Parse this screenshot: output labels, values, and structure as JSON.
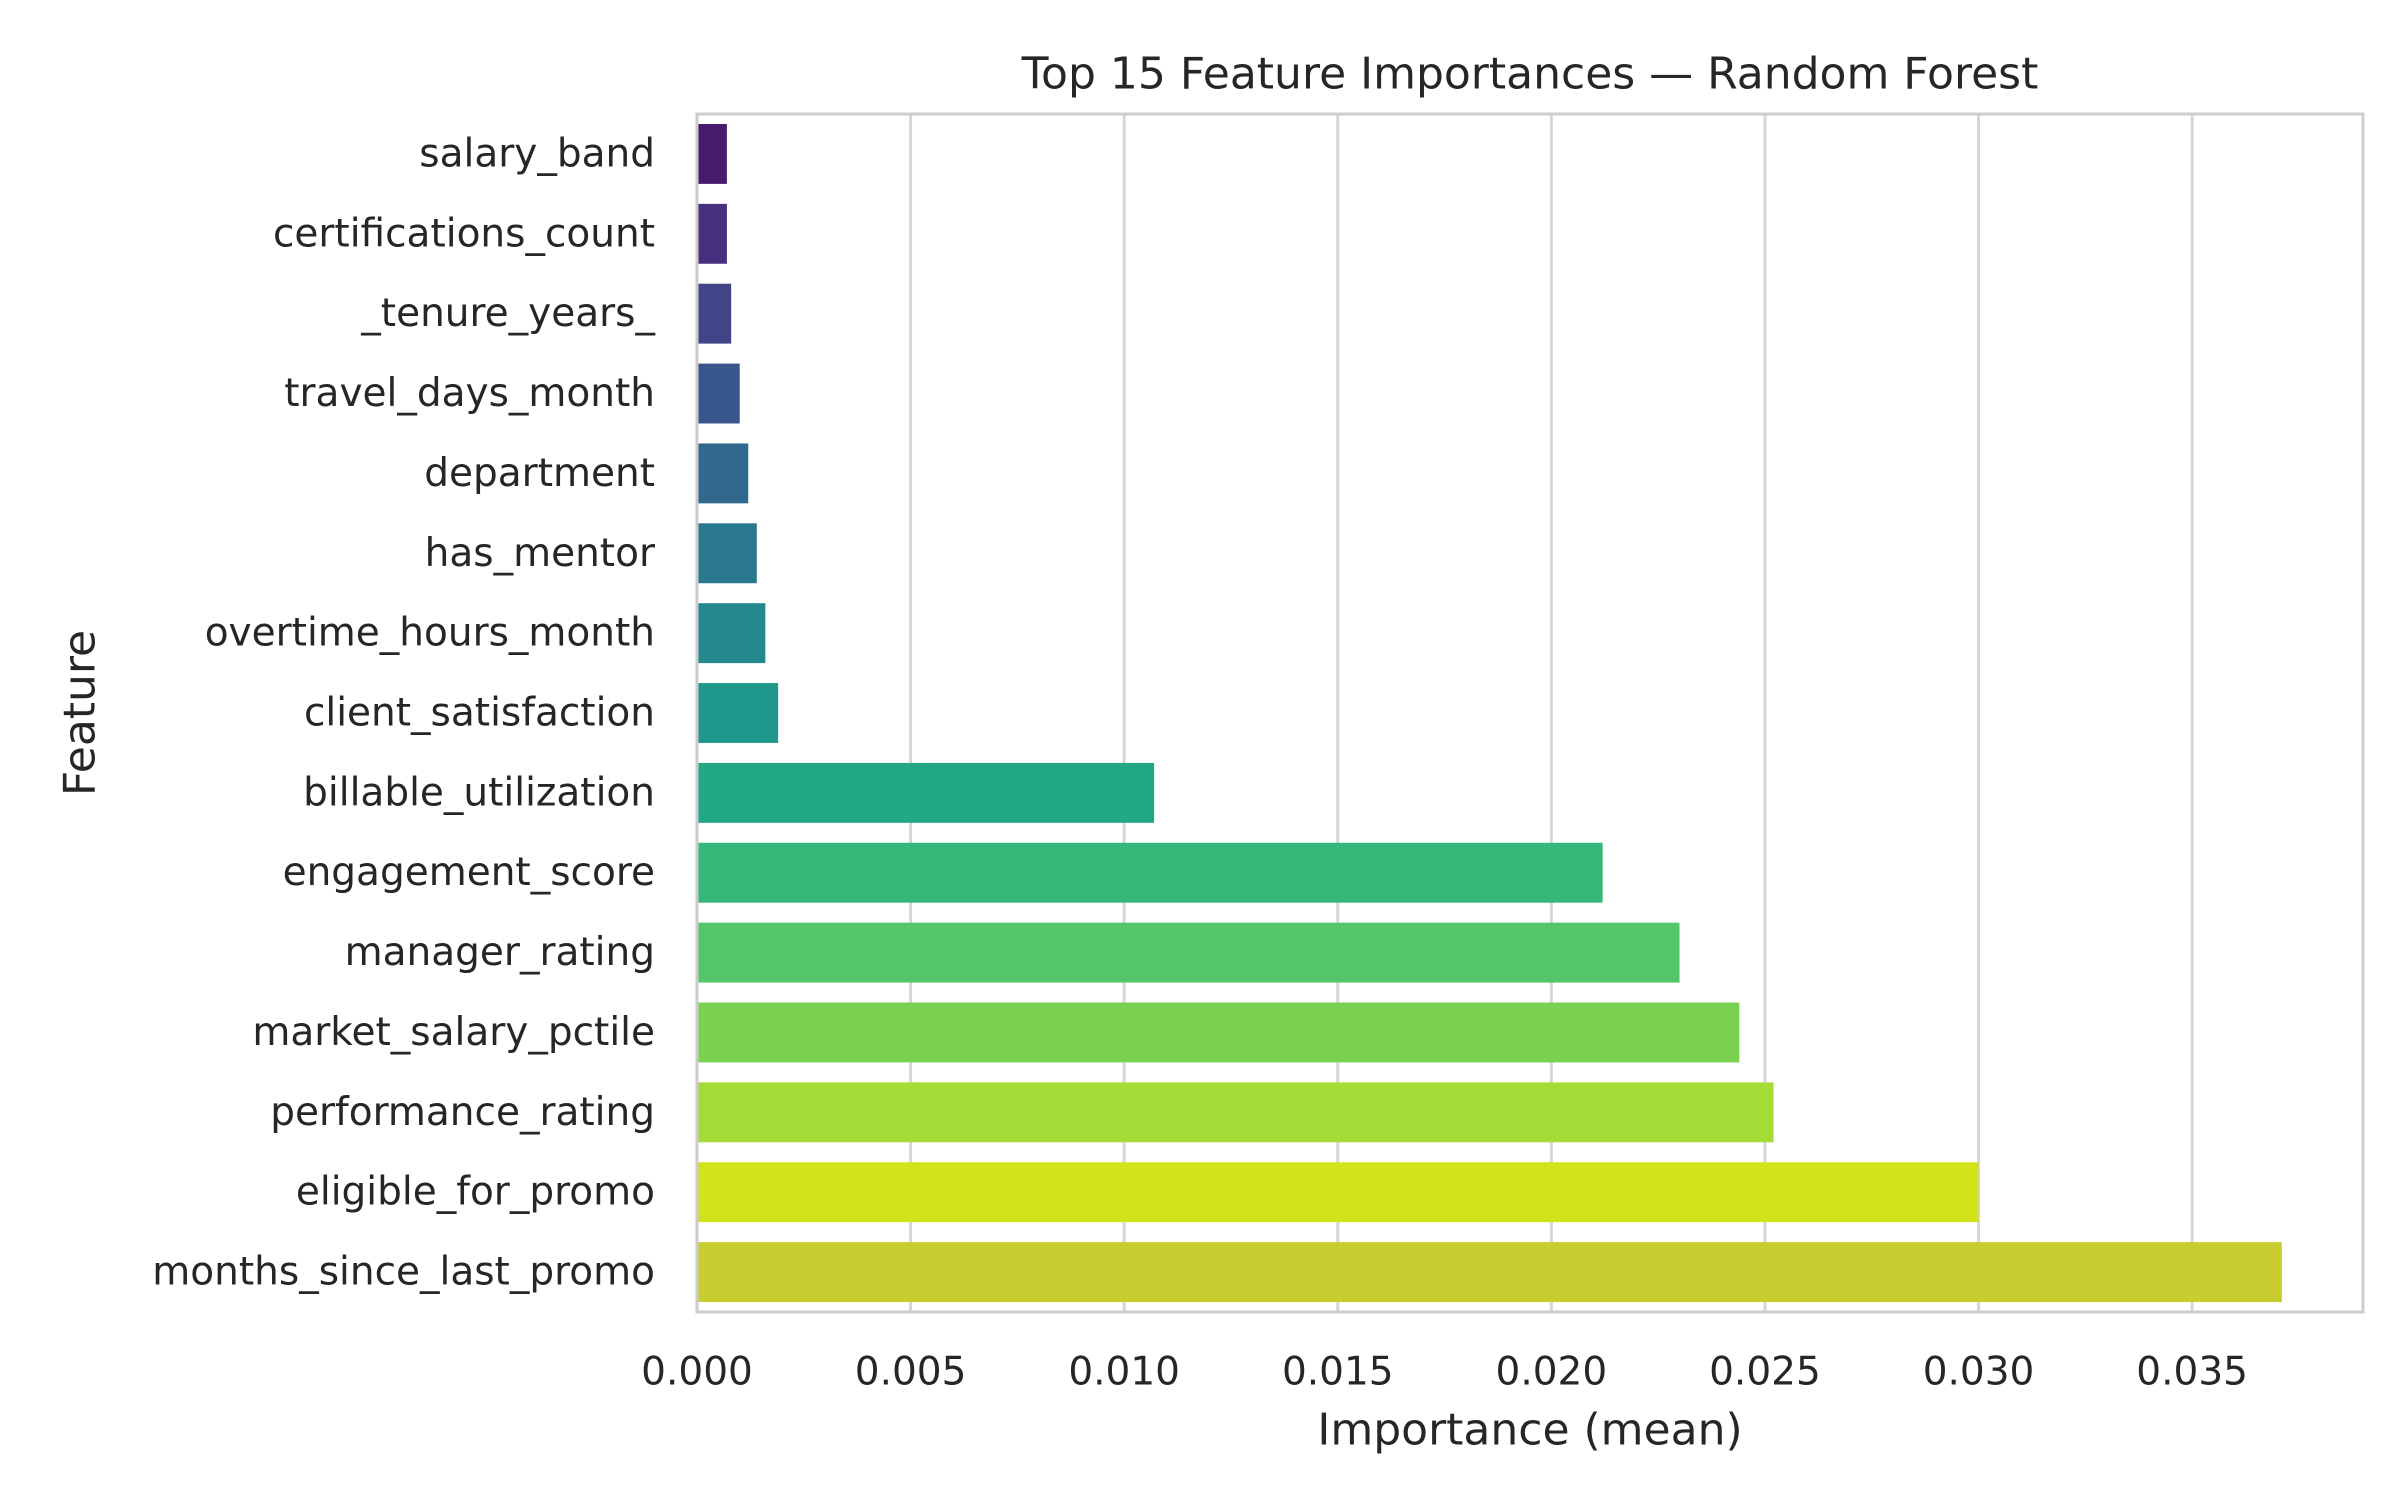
{
  "chart_data": {
    "type": "bar",
    "orientation": "horizontal",
    "title": "Top 15 Feature Importances — Random Forest",
    "xlabel": "Importance (mean)",
    "ylabel": "Feature",
    "xlim": [
      0,
      0.039
    ],
    "xticks": [
      0.0,
      0.005,
      0.01,
      0.015,
      0.02,
      0.025,
      0.03,
      0.035
    ],
    "xtick_labels": [
      "0.000",
      "0.005",
      "0.010",
      "0.015",
      "0.020",
      "0.025",
      "0.030",
      "0.035"
    ],
    "grid": true,
    "grid_axis": "x",
    "legend": false,
    "palette": "viridis",
    "categories": [
      "salary_band",
      "certifications_count",
      "_tenure_years_",
      "travel_days_month",
      "department",
      "has_mentor",
      "overtime_hours_month",
      "client_satisfaction",
      "billable_utilization",
      "engagement_score",
      "manager_rating",
      "market_salary_pctile",
      "performance_rating",
      "eligible_for_promo",
      "months_since_last_promo"
    ],
    "values": [
      0.0007,
      0.0007,
      0.0008,
      0.001,
      0.0012,
      0.0014,
      0.0016,
      0.0019,
      0.0107,
      0.0212,
      0.023,
      0.0244,
      0.0252,
      0.03,
      0.0371
    ],
    "colors": [
      "#481a6c",
      "#472f7d",
      "#414487",
      "#39568c",
      "#31688e",
      "#2a788e",
      "#23888e",
      "#1f988b",
      "#22a884",
      "#35b779",
      "#54c568",
      "#7ad151",
      "#a5db36",
      "#d2e21b",
      "#c9cc2e"
    ]
  }
}
